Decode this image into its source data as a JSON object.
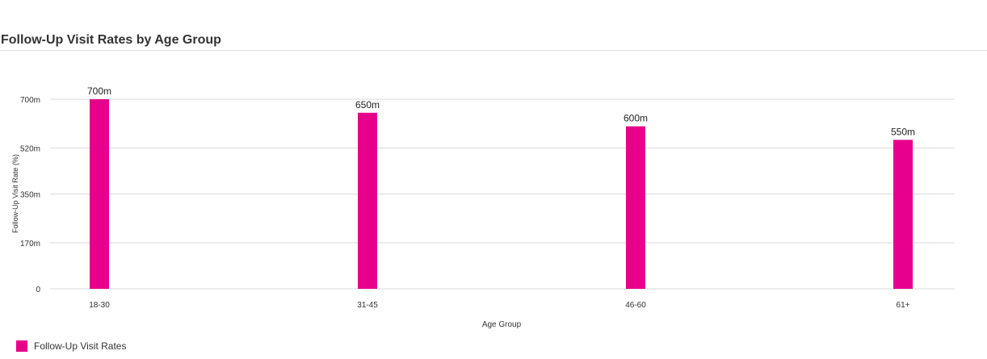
{
  "page": {
    "title": "Follow-Up Visit Rates by Age Group"
  },
  "colors": {
    "bar": "#e6008c",
    "grid": "#d9d9d9",
    "axis_text": "#333333"
  },
  "chart_data": {
    "type": "bar",
    "title": "Follow-Up Visit Rates by Age Group",
    "xlabel": "Age Group",
    "ylabel": "Follow-Up Visit Rate (%)",
    "categories": [
      "18-30",
      "31-45",
      "46-60",
      "61+"
    ],
    "series": [
      {
        "name": "Follow-Up Visit Rates",
        "values": [
          0.7,
          0.65,
          0.6,
          0.55
        ],
        "labels": [
          "700m",
          "650m",
          "600m",
          "550m"
        ]
      }
    ],
    "yticks": [
      {
        "value": 0,
        "label": "0"
      },
      {
        "value": 0.17,
        "label": "170m"
      },
      {
        "value": 0.35,
        "label": "350m"
      },
      {
        "value": 0.52,
        "label": "520m"
      },
      {
        "value": 0.7,
        "label": "700m"
      }
    ],
    "ylim": [
      0,
      0.7
    ],
    "grid": true,
    "legend_position": "bottom-left"
  }
}
